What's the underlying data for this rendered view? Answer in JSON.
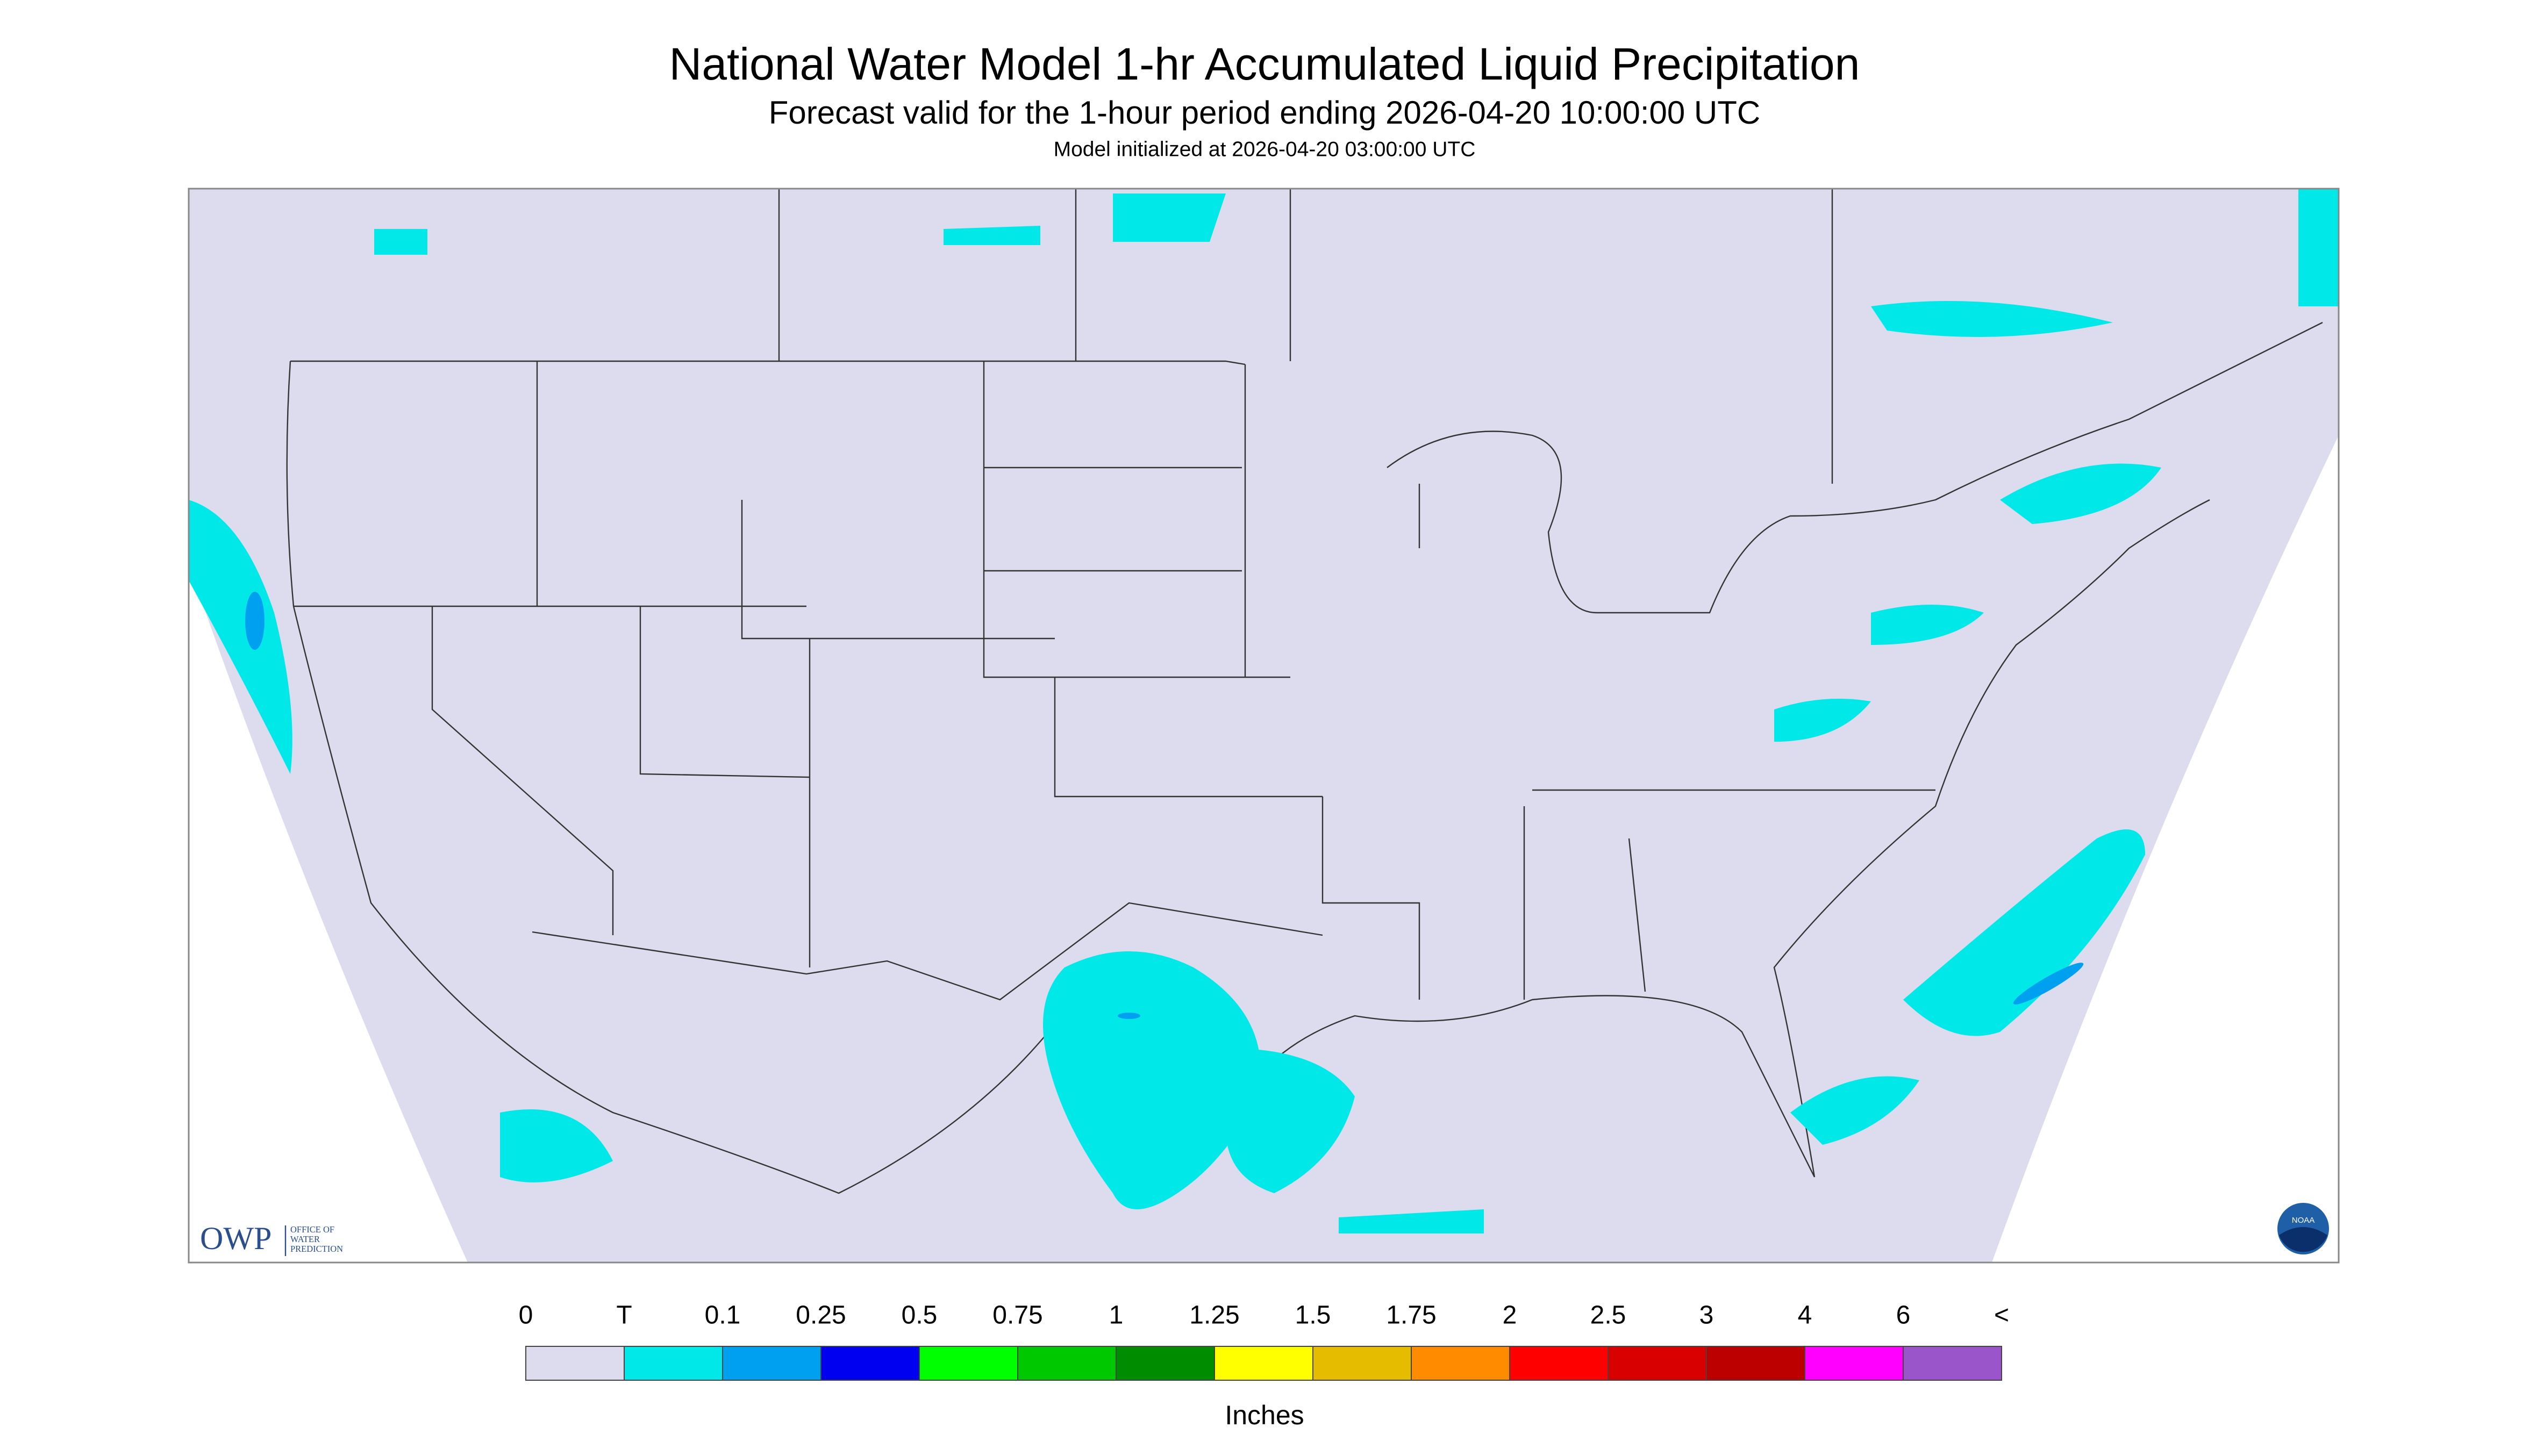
{
  "header": {
    "title": "National Water Model 1-hr Accumulated Liquid Precipitation",
    "subtitle": "Forecast valid for the 1-hour period ending 2026-04-20 10:00:00 UTC",
    "note": "Model initialized at 2026-04-20 03:00:00 UTC"
  },
  "logos": {
    "owp": "OWP",
    "owp_name": [
      "OFFICE OF",
      "WATER",
      "PREDICTION"
    ],
    "noaa": "NOAA"
  },
  "legend": {
    "title": "Inches",
    "labels": [
      "0",
      "T",
      "0.1",
      "0.25",
      "0.5",
      "0.75",
      "1",
      "1.25",
      "1.5",
      "1.75",
      "2",
      "2.5",
      "3",
      "4",
      "6",
      "<"
    ],
    "colors": [
      "#dcdcee",
      "#00e8e8",
      "#00a0f0",
      "#0000f0",
      "#00ff00",
      "#00c800",
      "#008c00",
      "#ffff00",
      "#e6bc00",
      "#ff8c00",
      "#ff0000",
      "#d80000",
      "#bc0000",
      "#ff00ff",
      "#9955c9"
    ]
  }
}
